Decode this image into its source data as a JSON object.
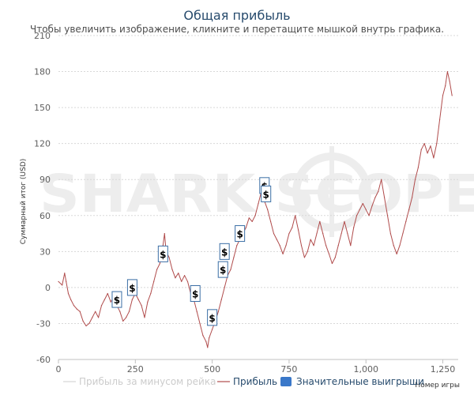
{
  "chart_data": {
    "type": "line",
    "title": "Общая прибыль",
    "subtitle": "Чтобы увеличить изображение, кликните и перетащите мышкой внутрь графика.",
    "xlabel": "Номер игры",
    "ylabel": "Суммарный итог (USD)",
    "xlim": [
      0,
      1300
    ],
    "ylim": [
      -60,
      210
    ],
    "x_ticks": [
      {
        "value": 0,
        "label": "0"
      },
      {
        "value": 250,
        "label": "250"
      },
      {
        "value": 500,
        "label": "500"
      },
      {
        "value": 750,
        "label": "750"
      },
      {
        "value": 1000,
        "label": "1,000"
      },
      {
        "value": 1250,
        "label": "1,250"
      }
    ],
    "y_ticks": [
      {
        "value": 210,
        "label": "210"
      },
      {
        "value": 180,
        "label": "180"
      },
      {
        "value": 150,
        "label": "150"
      },
      {
        "value": 120,
        "label": "120"
      },
      {
        "value": 90,
        "label": "90"
      },
      {
        "value": 60,
        "label": "60"
      },
      {
        "value": 30,
        "label": "30"
      },
      {
        "value": 0,
        "label": "0"
      },
      {
        "value": -30,
        "label": "-30"
      },
      {
        "value": -60,
        "label": "-60"
      }
    ],
    "grid": true,
    "watermark": "SHARK SCOPE",
    "legend": {
      "placement": "bottom",
      "items": [
        {
          "name": "Прибыль за минусом рейка",
          "color": "#d5d5d5",
          "type": "line",
          "visible": false
        },
        {
          "name": "Прибыль",
          "color": "#b04b4b",
          "type": "line",
          "visible": true
        },
        {
          "name": "Значительные выигрыши",
          "color": "#3a78c9",
          "type": "box",
          "visible": true
        }
      ]
    },
    "series": [
      {
        "name": "Прибыль",
        "color": "#b04b4b",
        "points": [
          [
            0,
            5
          ],
          [
            12,
            2
          ],
          [
            20,
            12
          ],
          [
            25,
            5
          ],
          [
            32,
            -5
          ],
          [
            40,
            -10
          ],
          [
            50,
            -15
          ],
          [
            60,
            -18
          ],
          [
            70,
            -20
          ],
          [
            80,
            -28
          ],
          [
            90,
            -32
          ],
          [
            100,
            -30
          ],
          [
            110,
            -25
          ],
          [
            120,
            -20
          ],
          [
            130,
            -25
          ],
          [
            140,
            -15
          ],
          [
            150,
            -10
          ],
          [
            160,
            -5
          ],
          [
            170,
            -12
          ],
          [
            180,
            -8
          ],
          [
            190,
            -15
          ],
          [
            200,
            -20
          ],
          [
            210,
            -28
          ],
          [
            220,
            -25
          ],
          [
            230,
            -20
          ],
          [
            240,
            -10
          ],
          [
            250,
            -5
          ],
          [
            260,
            -10
          ],
          [
            270,
            -15
          ],
          [
            280,
            -25
          ],
          [
            290,
            -12
          ],
          [
            300,
            -5
          ],
          [
            310,
            5
          ],
          [
            320,
            15
          ],
          [
            330,
            20
          ],
          [
            340,
            35
          ],
          [
            345,
            45
          ],
          [
            350,
            30
          ],
          [
            360,
            25
          ],
          [
            370,
            15
          ],
          [
            380,
            8
          ],
          [
            390,
            12
          ],
          [
            400,
            5
          ],
          [
            410,
            10
          ],
          [
            420,
            5
          ],
          [
            430,
            -5
          ],
          [
            440,
            -10
          ],
          [
            450,
            -20
          ],
          [
            460,
            -30
          ],
          [
            470,
            -40
          ],
          [
            480,
            -45
          ],
          [
            485,
            -50
          ],
          [
            490,
            -42
          ],
          [
            500,
            -35
          ],
          [
            510,
            -28
          ],
          [
            520,
            -20
          ],
          [
            530,
            -10
          ],
          [
            540,
            0
          ],
          [
            550,
            10
          ],
          [
            560,
            15
          ],
          [
            570,
            25
          ],
          [
            580,
            35
          ],
          [
            590,
            40
          ],
          [
            600,
            45
          ],
          [
            610,
            50
          ],
          [
            620,
            58
          ],
          [
            630,
            55
          ],
          [
            640,
            60
          ],
          [
            650,
            70
          ],
          [
            660,
            80
          ],
          [
            670,
            72
          ],
          [
            680,
            65
          ],
          [
            690,
            55
          ],
          [
            700,
            45
          ],
          [
            710,
            40
          ],
          [
            720,
            35
          ],
          [
            730,
            28
          ],
          [
            740,
            35
          ],
          [
            750,
            45
          ],
          [
            760,
            50
          ],
          [
            770,
            60
          ],
          [
            780,
            48
          ],
          [
            790,
            35
          ],
          [
            800,
            25
          ],
          [
            810,
            30
          ],
          [
            820,
            40
          ],
          [
            830,
            35
          ],
          [
            840,
            45
          ],
          [
            850,
            55
          ],
          [
            860,
            45
          ],
          [
            870,
            35
          ],
          [
            880,
            28
          ],
          [
            890,
            20
          ],
          [
            900,
            25
          ],
          [
            910,
            35
          ],
          [
            920,
            45
          ],
          [
            930,
            55
          ],
          [
            940,
            45
          ],
          [
            950,
            35
          ],
          [
            960,
            50
          ],
          [
            970,
            60
          ],
          [
            980,
            65
          ],
          [
            990,
            70
          ],
          [
            1000,
            65
          ],
          [
            1010,
            60
          ],
          [
            1020,
            68
          ],
          [
            1030,
            75
          ],
          [
            1040,
            80
          ],
          [
            1050,
            90
          ],
          [
            1060,
            75
          ],
          [
            1070,
            60
          ],
          [
            1080,
            45
          ],
          [
            1090,
            35
          ],
          [
            1100,
            28
          ],
          [
            1110,
            35
          ],
          [
            1120,
            45
          ],
          [
            1130,
            55
          ],
          [
            1140,
            65
          ],
          [
            1150,
            75
          ],
          [
            1160,
            90
          ],
          [
            1170,
            100
          ],
          [
            1180,
            115
          ],
          [
            1190,
            120
          ],
          [
            1200,
            112
          ],
          [
            1210,
            118
          ],
          [
            1220,
            108
          ],
          [
            1230,
            120
          ],
          [
            1240,
            140
          ],
          [
            1250,
            160
          ],
          [
            1258,
            168
          ],
          [
            1265,
            180
          ],
          [
            1272,
            172
          ],
          [
            1280,
            160
          ]
        ]
      }
    ],
    "flags": [
      {
        "x": 190,
        "y": -10,
        "text": "$"
      },
      {
        "x": 240,
        "y": 0,
        "text": "$"
      },
      {
        "x": 340,
        "y": 28,
        "text": "$"
      },
      {
        "x": 445,
        "y": -5,
        "text": "$"
      },
      {
        "x": 500,
        "y": -25,
        "text": "$"
      },
      {
        "x": 535,
        "y": 15,
        "text": "$"
      },
      {
        "x": 540,
        "y": 30,
        "text": "$"
      },
      {
        "x": 590,
        "y": 45,
        "text": "$"
      },
      {
        "x": 670,
        "y": 85,
        "text": "$"
      },
      {
        "x": 675,
        "y": 78,
        "text": "$"
      }
    ]
  }
}
